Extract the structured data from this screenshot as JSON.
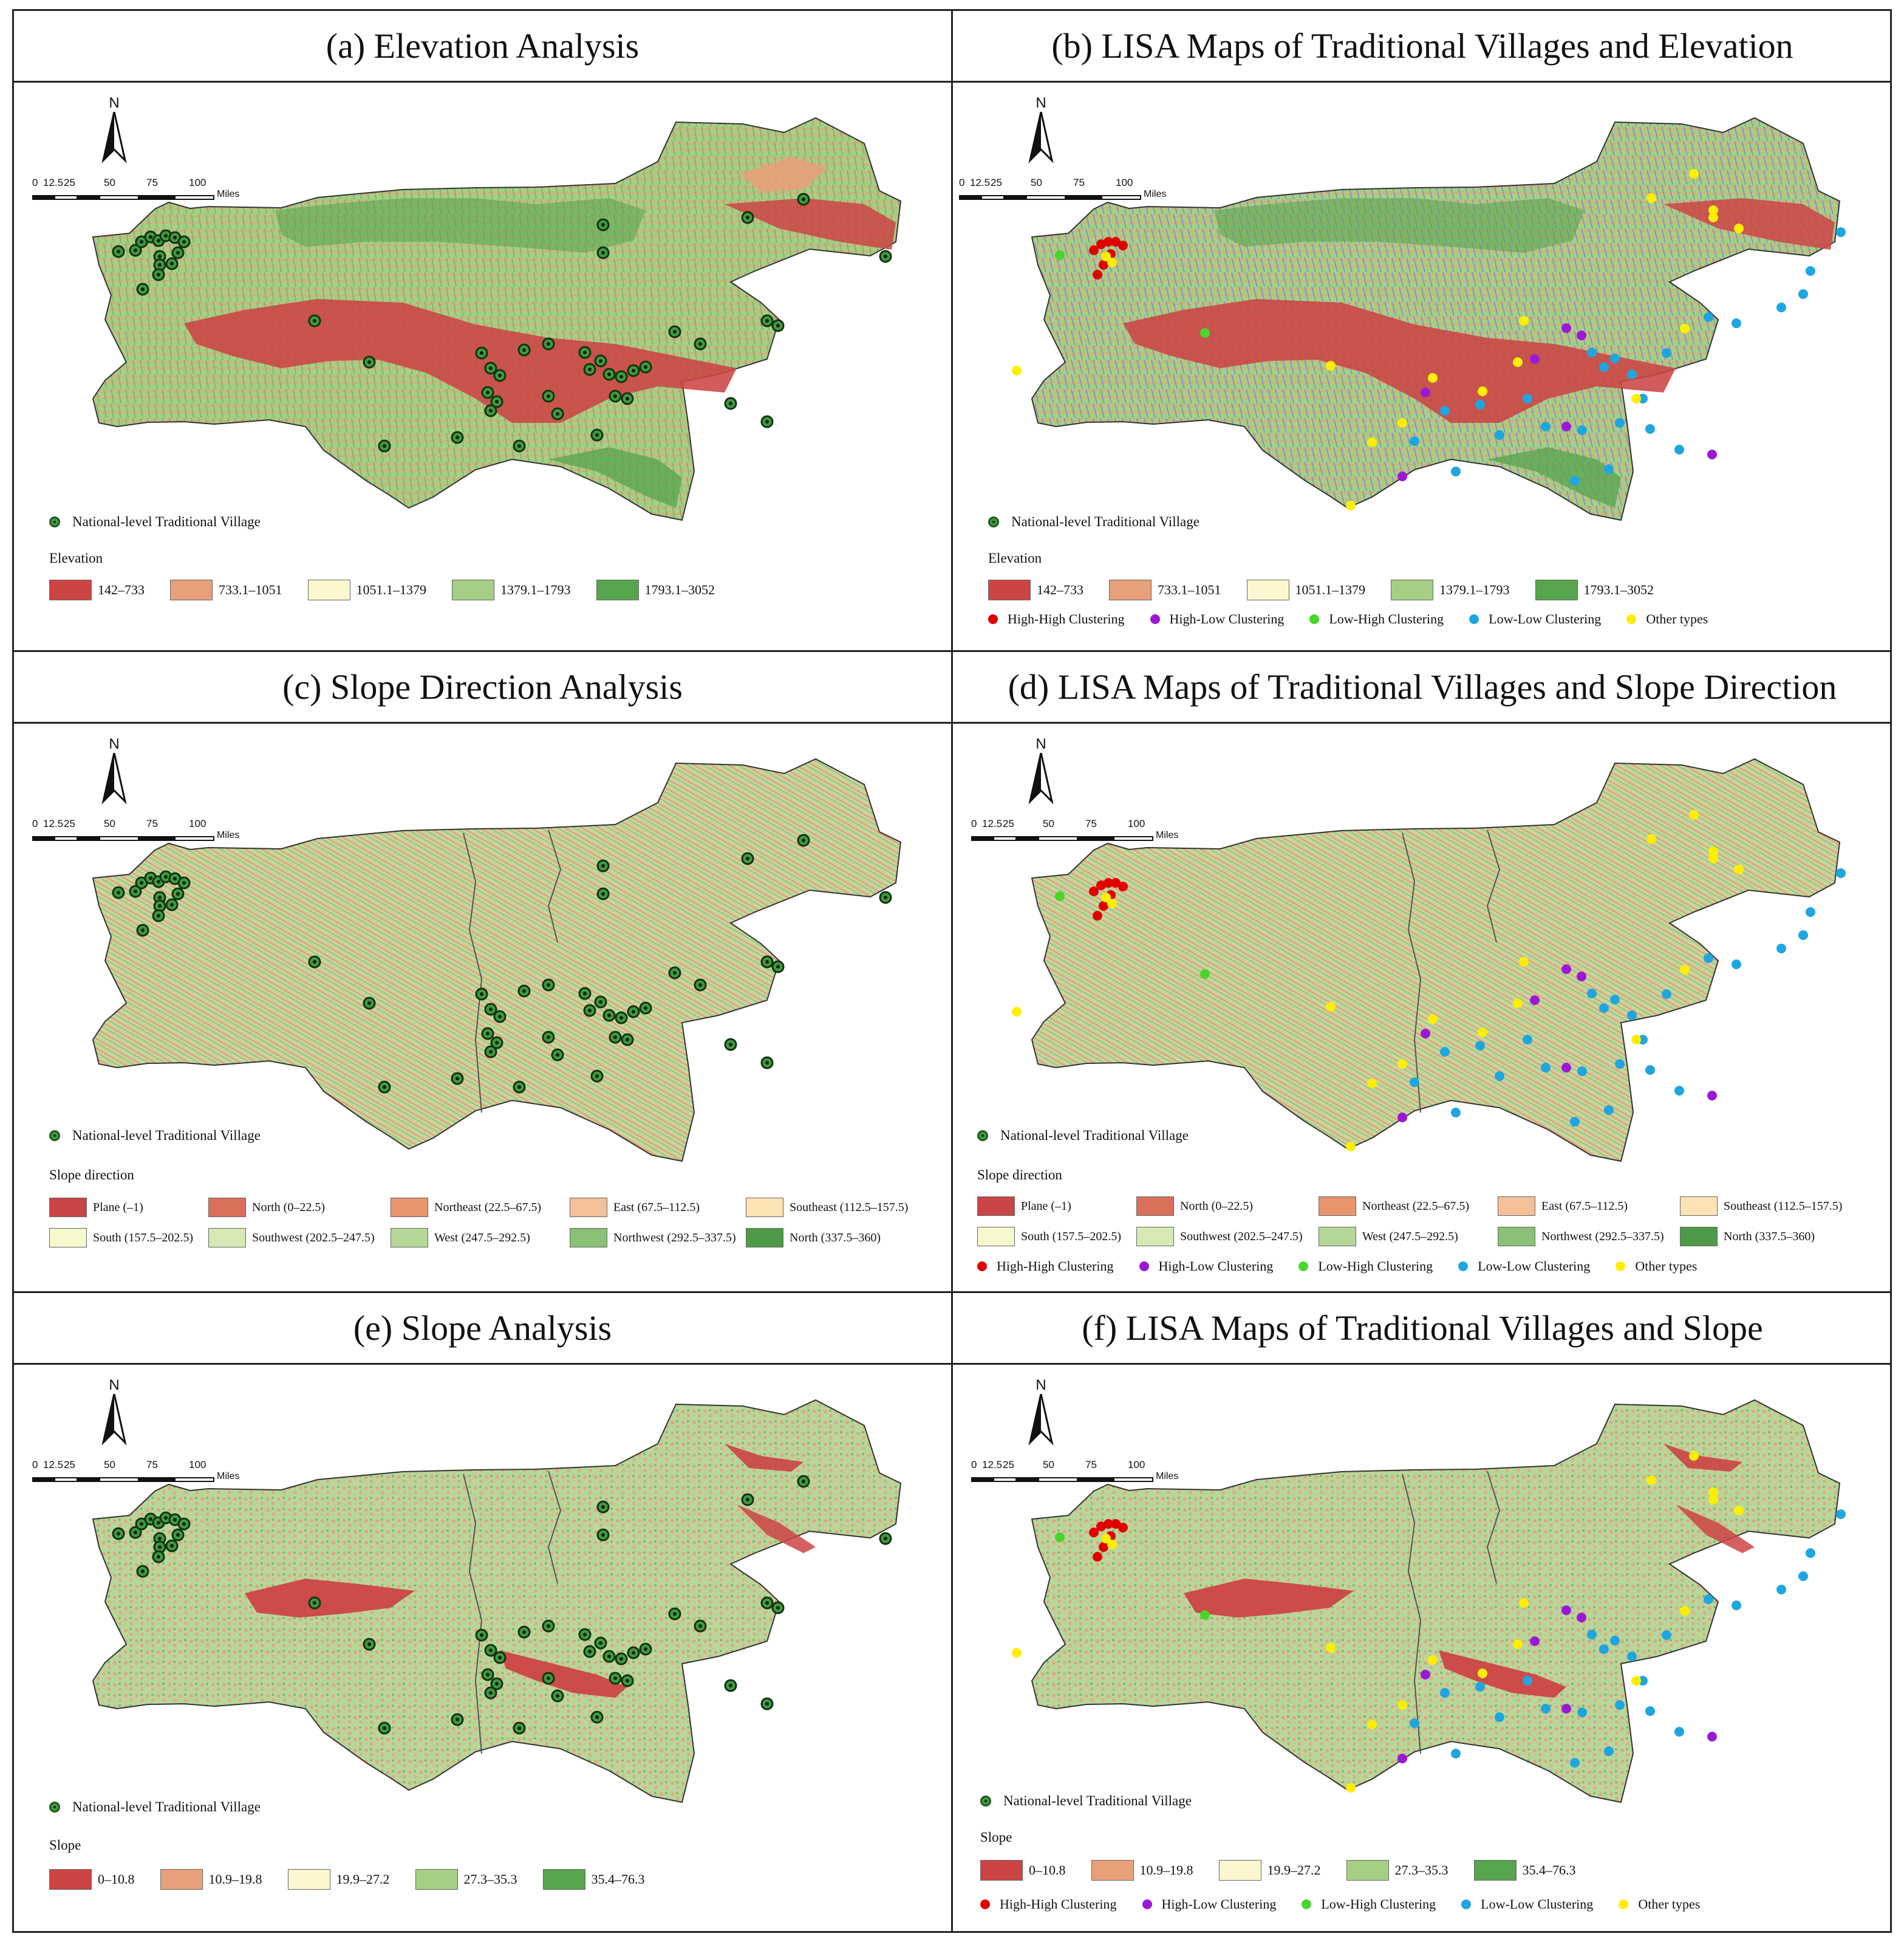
{
  "panels": {
    "a": {
      "title": "(a) Elevation Analysis"
    },
    "b": {
      "title": "(b) LISA Maps of Traditional Villages and Elevation"
    },
    "c": {
      "title": "(c) Slope Direction Analysis"
    },
    "d": {
      "title": "(d) LISA Maps of Traditional Villages and Slope Direction"
    },
    "e": {
      "title": "(e) Slope Analysis"
    },
    "f": {
      "title": "(f) LISA Maps of Traditional Villages and Slope"
    }
  },
  "north_label": "N",
  "scale": {
    "ticks": [
      "0",
      "12.5",
      "25",
      "50",
      "75",
      "100"
    ],
    "unit": "Miles"
  },
  "village_label": "National-level Traditional Village",
  "elevation_legend": {
    "title": "Elevation",
    "classes": [
      {
        "label": "142–733",
        "color": "#cc4444"
      },
      {
        "label": "733.1–1051",
        "color": "#e8a07a"
      },
      {
        "label": "1051.1–1379",
        "color": "#fdf7d0"
      },
      {
        "label": "1379.1–1793",
        "color": "#a6cf86"
      },
      {
        "label": "1793.1–3052",
        "color": "#56a44e"
      }
    ]
  },
  "aspect_legend": {
    "title": "Slope direction",
    "row1": [
      {
        "label": "Plane (–1)",
        "color": "#c74545"
      },
      {
        "label": "North (0–22.5)",
        "color": "#d9705a"
      },
      {
        "label": "Northeast (22.5–67.5)",
        "color": "#e8946f"
      },
      {
        "label": "East (67.5–112.5)",
        "color": "#f3c09a"
      },
      {
        "label": "Southeast (112.5–157.5)",
        "color": "#fbe3b4"
      }
    ],
    "row2": [
      {
        "label": "South (157.5–202.5)",
        "color": "#f6f8cd"
      },
      {
        "label": "Southwest (202.5–247.5)",
        "color": "#d6e9b4"
      },
      {
        "label": "West (247.5–292.5)",
        "color": "#b5d898"
      },
      {
        "label": "Northwest (292.5–337.5)",
        "color": "#8ac176"
      },
      {
        "label": "North (337.5–360)",
        "color": "#4f9a48"
      }
    ]
  },
  "slope_legend": {
    "title": "Slope",
    "classes": [
      {
        "label": "0–10.8",
        "color": "#cc4444"
      },
      {
        "label": "10.9–19.8",
        "color": "#e8a07a"
      },
      {
        "label": "19.9–27.2",
        "color": "#fdf7d0"
      },
      {
        "label": "27.3–35.3",
        "color": "#a6cf86"
      },
      {
        "label": "35.4–76.3",
        "color": "#56a44e"
      }
    ]
  },
  "lisa_legend": [
    {
      "label": "High-High Clustering",
      "color": "#e00000"
    },
    {
      "label": "High-Low Clustering",
      "color": "#9b19d6"
    },
    {
      "label": "Low-High Clustering",
      "color": "#48d62a"
    },
    {
      "label": "Low-Low Clustering",
      "color": "#1ea6e0"
    },
    {
      "label": "Other types",
      "color": "#ffee00"
    }
  ]
}
